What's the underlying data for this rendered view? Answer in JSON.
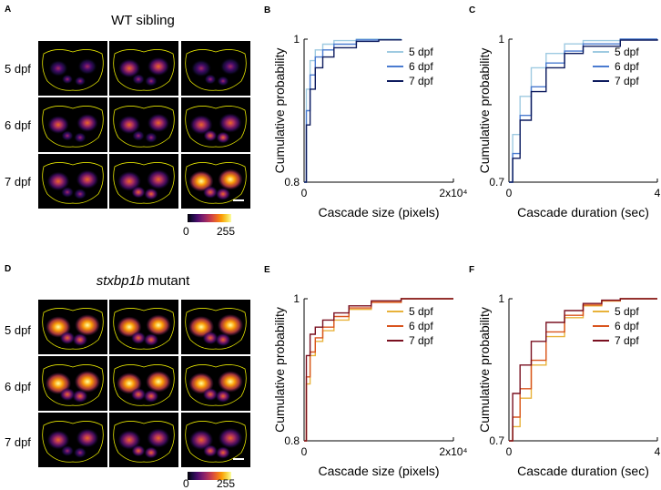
{
  "panels": {
    "a": {
      "letter": "A",
      "title": "WT sibling",
      "rows": [
        "5 dpf",
        "6 dpf",
        "7 dpf"
      ],
      "cbar_min": "0",
      "cbar_max": "255"
    },
    "d": {
      "letter": "D",
      "title_italic": "stxbp1b",
      "title_rest": " mutant",
      "rows": [
        "5 dpf",
        "6 dpf",
        "7 dpf"
      ],
      "cbar_min": "0",
      "cbar_max": "255"
    }
  },
  "colors": {
    "wt": [
      "#9ecae1",
      "#4a7bd0",
      "#0d1b5e"
    ],
    "mut": [
      "#e8b23a",
      "#d9541e",
      "#7a1020"
    ],
    "outline": "#e6e600"
  },
  "chart_data": [
    {
      "id": "B",
      "type": "line",
      "xlabel": "Cascade size (pixels)",
      "ylabel": "Cumulative probability",
      "xticks": [
        "0",
        "2x10⁴"
      ],
      "yticks": [
        "0.8",
        "1"
      ],
      "xlim": [
        0,
        20000
      ],
      "ylim": [
        0.8,
        1
      ],
      "series": [
        {
          "name": "5 dpf",
          "points": [
            [
              0,
              0.8
            ],
            [
              300,
              0.93
            ],
            [
              800,
              0.97
            ],
            [
              1500,
              0.985
            ],
            [
              2500,
              0.993
            ],
            [
              4000,
              0.998
            ],
            [
              7000,
              1
            ],
            [
              13000,
              1
            ]
          ]
        },
        {
          "name": "6 dpf",
          "points": [
            [
              0,
              0.8
            ],
            [
              300,
              0.9
            ],
            [
              800,
              0.95
            ],
            [
              1500,
              0.975
            ],
            [
              2500,
              0.985
            ],
            [
              4000,
              0.993
            ],
            [
              7000,
              0.999
            ],
            [
              13000,
              1
            ]
          ]
        },
        {
          "name": "7 dpf",
          "points": [
            [
              0,
              0.8
            ],
            [
              300,
              0.88
            ],
            [
              800,
              0.93
            ],
            [
              1500,
              0.96
            ],
            [
              2500,
              0.975
            ],
            [
              4000,
              0.988
            ],
            [
              7000,
              0.997
            ],
            [
              10000,
              0.999
            ],
            [
              13000,
              1
            ]
          ]
        }
      ]
    },
    {
      "id": "C",
      "type": "line",
      "xlabel": "Cascade duration (sec)",
      "ylabel": "Cumulative probability",
      "xticks": [
        "0",
        "4"
      ],
      "yticks": [
        "0.7",
        "1"
      ],
      "xlim": [
        0,
        4
      ],
      "ylim": [
        0.7,
        1
      ],
      "series": [
        {
          "name": "5 dpf",
          "points": [
            [
              0,
              0.7
            ],
            [
              0.1,
              0.8
            ],
            [
              0.3,
              0.88
            ],
            [
              0.6,
              0.94
            ],
            [
              1,
              0.97
            ],
            [
              1.5,
              0.99
            ],
            [
              2,
              0.997
            ],
            [
              3,
              1
            ],
            [
              4,
              1
            ]
          ]
        },
        {
          "name": "6 dpf",
          "points": [
            [
              0,
              0.7
            ],
            [
              0.1,
              0.76
            ],
            [
              0.3,
              0.84
            ],
            [
              0.6,
              0.9
            ],
            [
              1,
              0.95
            ],
            [
              1.5,
              0.975
            ],
            [
              2,
              0.99
            ],
            [
              3,
              1
            ],
            [
              4,
              1
            ]
          ]
        },
        {
          "name": "7 dpf",
          "points": [
            [
              0,
              0.7
            ],
            [
              0.1,
              0.75
            ],
            [
              0.3,
              0.83
            ],
            [
              0.6,
              0.89
            ],
            [
              1,
              0.94
            ],
            [
              1.5,
              0.97
            ],
            [
              2,
              0.985
            ],
            [
              3,
              0.998
            ],
            [
              4,
              1
            ]
          ]
        }
      ]
    },
    {
      "id": "E",
      "type": "line",
      "xlabel": "Cascade size (pixels)",
      "ylabel": "Cumulative probability",
      "xticks": [
        "0",
        "2x10⁴"
      ],
      "yticks": [
        "0.8",
        "1"
      ],
      "xlim": [
        0,
        20000
      ],
      "ylim": [
        0.8,
        1
      ],
      "series": [
        {
          "name": "5 dpf",
          "points": [
            [
              0,
              0.8
            ],
            [
              300,
              0.88
            ],
            [
              800,
              0.92
            ],
            [
              1500,
              0.94
            ],
            [
              2500,
              0.955
            ],
            [
              4000,
              0.97
            ],
            [
              6000,
              0.985
            ],
            [
              9000,
              0.995
            ],
            [
              13000,
              1
            ],
            [
              20000,
              1
            ]
          ]
        },
        {
          "name": "6 dpf",
          "points": [
            [
              0,
              0.8
            ],
            [
              300,
              0.89
            ],
            [
              800,
              0.925
            ],
            [
              1500,
              0.945
            ],
            [
              2500,
              0.96
            ],
            [
              4000,
              0.975
            ],
            [
              6000,
              0.987
            ],
            [
              9000,
              0.995
            ],
            [
              13000,
              1
            ],
            [
              20000,
              1
            ]
          ]
        },
        {
          "name": "7 dpf",
          "points": [
            [
              0,
              0.8
            ],
            [
              300,
              0.92
            ],
            [
              800,
              0.95
            ],
            [
              1500,
              0.96
            ],
            [
              2500,
              0.97
            ],
            [
              4000,
              0.98
            ],
            [
              6000,
              0.99
            ],
            [
              9000,
              0.997
            ],
            [
              13000,
              1
            ],
            [
              20000,
              1
            ]
          ]
        }
      ]
    },
    {
      "id": "F",
      "type": "line",
      "xlabel": "Cascade duration (sec)",
      "ylabel": "Cumulative probability",
      "xticks": [
        "0",
        "4"
      ],
      "yticks": [
        "0.7",
        "1"
      ],
      "xlim": [
        0,
        4
      ],
      "ylim": [
        0.7,
        1
      ],
      "series": [
        {
          "name": "5 dpf",
          "points": [
            [
              0,
              0.7
            ],
            [
              0.1,
              0.73
            ],
            [
              0.3,
              0.79
            ],
            [
              0.6,
              0.86
            ],
            [
              1,
              0.92
            ],
            [
              1.5,
              0.96
            ],
            [
              2,
              0.985
            ],
            [
              2.5,
              0.995
            ],
            [
              3,
              1
            ],
            [
              4,
              1
            ]
          ]
        },
        {
          "name": "6 dpf",
          "points": [
            [
              0,
              0.7
            ],
            [
              0.1,
              0.75
            ],
            [
              0.3,
              0.81
            ],
            [
              0.6,
              0.87
            ],
            [
              1,
              0.93
            ],
            [
              1.5,
              0.965
            ],
            [
              2,
              0.987
            ],
            [
              2.5,
              0.996
            ],
            [
              3,
              1
            ],
            [
              4,
              1
            ]
          ]
        },
        {
          "name": "7 dpf",
          "points": [
            [
              0,
              0.7
            ],
            [
              0.1,
              0.8
            ],
            [
              0.3,
              0.86
            ],
            [
              0.6,
              0.91
            ],
            [
              1,
              0.95
            ],
            [
              1.5,
              0.975
            ],
            [
              2,
              0.99
            ],
            [
              2.5,
              0.997
            ],
            [
              3,
              1
            ],
            [
              4,
              1
            ]
          ]
        }
      ]
    }
  ]
}
